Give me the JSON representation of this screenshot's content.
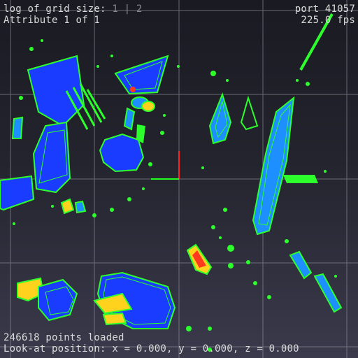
{
  "hud": {
    "grid_label": "log of grid size: ",
    "grid_value_a": "1",
    "grid_separator": " | ",
    "grid_value_b": "2",
    "attribute_text": "Attribute 1 of 1",
    "port_text": "port 41057",
    "fps_text": "225.0 fps",
    "points_loaded_text": "246618 points loaded",
    "lookat_text": "Look-at position: x = 0.000, y = 0.000, z = 0.000"
  },
  "colors": {
    "grid_line": "#8a8a96",
    "edge_green": "#2dff2d",
    "fill_blue": "#1a3cff",
    "fill_cyan": "#1e8fff",
    "accent_yellow": "#ffd21e",
    "accent_red": "#ff3a1e",
    "axis_red": "#ff2020",
    "axis_green": "#20ff20"
  }
}
